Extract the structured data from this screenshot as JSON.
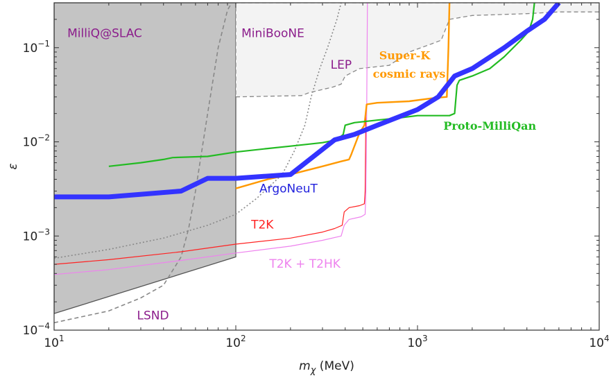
{
  "chart_data": {
    "type": "line",
    "x_scale": "log",
    "y_scale": "log",
    "xlim": [
      10,
      10000
    ],
    "ylim": [
      0.0001,
      0.3
    ],
    "xlabel_symbol": "m",
    "xlabel_sub": "χ",
    "xlabel_unit": " (MeV)",
    "ylabel": "ε",
    "x_ticks": [
      {
        "value": 10,
        "base": "10",
        "exp": "1"
      },
      {
        "value": 100,
        "base": "10",
        "exp": "2"
      },
      {
        "value": 1000,
        "base": "10",
        "exp": "3"
      },
      {
        "value": 10000,
        "base": "10",
        "exp": "4"
      }
    ],
    "y_ticks": [
      {
        "value": 0.0001,
        "base": "10",
        "exp": "−4"
      },
      {
        "value": 0.001,
        "base": "10",
        "exp": "−3"
      },
      {
        "value": 0.01,
        "base": "10",
        "exp": "−2"
      },
      {
        "value": 0.1,
        "base": "10",
        "exp": "−1"
      }
    ],
    "regions": [
      {
        "key": "millicharge-slac",
        "fill": "#c4c4c4",
        "stroke": "#555555",
        "points": [
          [
            10,
            0.3
          ],
          [
            100,
            0.3
          ],
          [
            100,
            0.0006
          ],
          [
            10,
            0.00015
          ]
        ]
      },
      {
        "key": "miniboone",
        "fill": "#f3f3f3",
        "stroke": "#888888",
        "dash": "6,4",
        "points": [
          [
            100,
            0.03
          ],
          [
            230,
            0.031
          ],
          [
            250,
            0.033
          ],
          [
            300,
            0.036
          ],
          [
            340,
            0.038
          ],
          [
            380,
            0.041
          ],
          [
            400,
            0.05
          ],
          [
            480,
            0.06
          ],
          [
            700,
            0.065
          ],
          [
            900,
            0.09
          ],
          [
            1200,
            0.11
          ],
          [
            1350,
            0.12
          ],
          [
            1500,
            0.2
          ],
          [
            2000,
            0.22
          ],
          [
            4000,
            0.23
          ],
          [
            6000,
            0.24
          ],
          [
            10000,
            0.24
          ],
          [
            10000,
            0.3
          ],
          [
            100,
            0.3
          ]
        ]
      }
    ],
    "series": [
      {
        "key": "lsnd",
        "color": "#888888",
        "width": 1.6,
        "dash": "6,4",
        "points": [
          [
            10,
            0.00012
          ],
          [
            20,
            0.00016
          ],
          [
            30,
            0.00022
          ],
          [
            40,
            0.0003
          ],
          [
            50,
            0.0006
          ],
          [
            55,
            0.0012
          ],
          [
            60,
            0.003
          ],
          [
            70,
            0.02
          ],
          [
            80,
            0.1
          ],
          [
            90,
            0.25
          ],
          [
            95,
            0.3
          ]
        ]
      },
      {
        "key": "lep",
        "color": "#888888",
        "width": 1.6,
        "dash": "2,3",
        "points": [
          [
            10,
            0.00058
          ],
          [
            20,
            0.00072
          ],
          [
            40,
            0.00095
          ],
          [
            70,
            0.0013
          ],
          [
            100,
            0.0017
          ],
          [
            130,
            0.0025
          ],
          [
            180,
            0.0045
          ],
          [
            210,
            0.008
          ],
          [
            240,
            0.015
          ],
          [
            260,
            0.03
          ],
          [
            290,
            0.06
          ],
          [
            320,
            0.1
          ],
          [
            360,
            0.2
          ],
          [
            380,
            0.3
          ]
        ]
      },
      {
        "key": "t2k",
        "color": "#ff2222",
        "width": 1.2,
        "dash": "",
        "points": [
          [
            10,
            0.0005
          ],
          [
            20,
            0.00056
          ],
          [
            50,
            0.00068
          ],
          [
            100,
            0.00082
          ],
          [
            200,
            0.00095
          ],
          [
            300,
            0.0011
          ],
          [
            350,
            0.0012
          ],
          [
            385,
            0.0013
          ],
          [
            395,
            0.0018
          ],
          [
            420,
            0.002
          ],
          [
            480,
            0.0021
          ],
          [
            510,
            0.0022
          ],
          [
            515,
            0.003
          ],
          [
            520,
            0.02
          ]
        ]
      },
      {
        "key": "t2k-t2hk",
        "color": "#ee82ee",
        "width": 1.2,
        "dash": "",
        "points": [
          [
            10,
            0.00039
          ],
          [
            20,
            0.00044
          ],
          [
            50,
            0.00055
          ],
          [
            100,
            0.00066
          ],
          [
            200,
            0.00078
          ],
          [
            300,
            0.0009
          ],
          [
            380,
            0.001
          ],
          [
            395,
            0.0013
          ],
          [
            420,
            0.0015
          ],
          [
            490,
            0.0016
          ],
          [
            515,
            0.0017
          ],
          [
            520,
            0.003
          ],
          [
            525,
            0.02
          ],
          [
            530,
            0.3
          ]
        ]
      },
      {
        "key": "super-k",
        "color": "#ff9900",
        "width": 2.4,
        "dash": "",
        "points": [
          [
            100,
            0.0032
          ],
          [
            150,
            0.004
          ],
          [
            200,
            0.0045
          ],
          [
            300,
            0.0055
          ],
          [
            380,
            0.0062
          ],
          [
            420,
            0.0065
          ],
          [
            430,
            0.0072
          ],
          [
            480,
            0.0125
          ],
          [
            510,
            0.015
          ],
          [
            525,
            0.025
          ],
          [
            600,
            0.026
          ],
          [
            900,
            0.027
          ],
          [
            1200,
            0.029
          ],
          [
            1450,
            0.03
          ],
          [
            1480,
            0.1
          ],
          [
            1500,
            0.3
          ]
        ]
      },
      {
        "key": "proto-milliqan",
        "color": "#22bb22",
        "width": 2.2,
        "dash": "",
        "points": [
          [
            20,
            0.0055
          ],
          [
            30,
            0.006
          ],
          [
            40,
            0.0065
          ],
          [
            45,
            0.0068
          ],
          [
            70,
            0.007
          ],
          [
            100,
            0.0078
          ],
          [
            150,
            0.0085
          ],
          [
            200,
            0.009
          ],
          [
            300,
            0.0098
          ],
          [
            360,
            0.0105
          ],
          [
            390,
            0.012
          ],
          [
            400,
            0.015
          ],
          [
            450,
            0.016
          ],
          [
            600,
            0.017
          ],
          [
            800,
            0.018
          ],
          [
            1000,
            0.019
          ],
          [
            1500,
            0.019
          ],
          [
            1600,
            0.02
          ],
          [
            1650,
            0.04
          ],
          [
            1700,
            0.045
          ],
          [
            2000,
            0.05
          ],
          [
            2500,
            0.06
          ],
          [
            3000,
            0.08
          ],
          [
            3700,
            0.12
          ],
          [
            4100,
            0.15
          ],
          [
            4300,
            0.2
          ],
          [
            4400,
            0.3
          ]
        ]
      },
      {
        "key": "argoneut",
        "color": "#3333ff",
        "width": 7,
        "dash": "",
        "points": [
          [
            10,
            0.0026
          ],
          [
            20,
            0.0026
          ],
          [
            50,
            0.003
          ],
          [
            70,
            0.0041
          ],
          [
            100,
            0.0041
          ],
          [
            200,
            0.0045
          ],
          [
            280,
            0.0075
          ],
          [
            350,
            0.0105
          ],
          [
            450,
            0.012
          ],
          [
            600,
            0.015
          ],
          [
            1000,
            0.022
          ],
          [
            1300,
            0.03
          ],
          [
            1600,
            0.05
          ],
          [
            2000,
            0.06
          ],
          [
            3000,
            0.1
          ],
          [
            4000,
            0.15
          ],
          [
            5000,
            0.2
          ],
          [
            6000,
            0.3
          ]
        ]
      }
    ],
    "labels": [
      {
        "key": "millicharge-slac-label",
        "text": "MilliQ@SLAC",
        "x": 19,
        "y": 0.13,
        "color": "#8b1c8b",
        "bold": false
      },
      {
        "key": "miniboone-label",
        "text": "MiniBooNE",
        "x": 160,
        "y": 0.13,
        "color": "#8b1c8b",
        "bold": false
      },
      {
        "key": "lep-label",
        "text": "LEP",
        "x": 380,
        "y": 0.06,
        "color": "#8b1c8b",
        "bold": false
      },
      {
        "key": "super-k-label-1",
        "text": "Super-K",
        "x": 850,
        "y": 0.075,
        "color": "#ff9900",
        "bold": true
      },
      {
        "key": "super-k-label-2",
        "text": "cosmic rays",
        "x": 900,
        "y": 0.048,
        "color": "#ff9900",
        "bold": true
      },
      {
        "key": "proto-milliqan-label",
        "text": "Proto-MilliQan",
        "x": 2500,
        "y": 0.0135,
        "color": "#22bb22",
        "bold": true
      },
      {
        "key": "argoneut-label",
        "text": "ArgoNeuT",
        "x": 195,
        "y": 0.0029,
        "color": "#2222dd",
        "bold": false
      },
      {
        "key": "t2k-label",
        "text": "T2K",
        "x": 140,
        "y": 0.0012,
        "color": "#ff2222",
        "bold": false
      },
      {
        "key": "t2k-t2hk-label",
        "text": "T2K + T2HK",
        "x": 240,
        "y": 0.00046,
        "color": "#ee82ee",
        "bold": false
      },
      {
        "key": "lsnd-label",
        "text": "LSND",
        "x": 35,
        "y": 0.00013,
        "color": "#8b1c8b",
        "bold": false
      }
    ]
  }
}
